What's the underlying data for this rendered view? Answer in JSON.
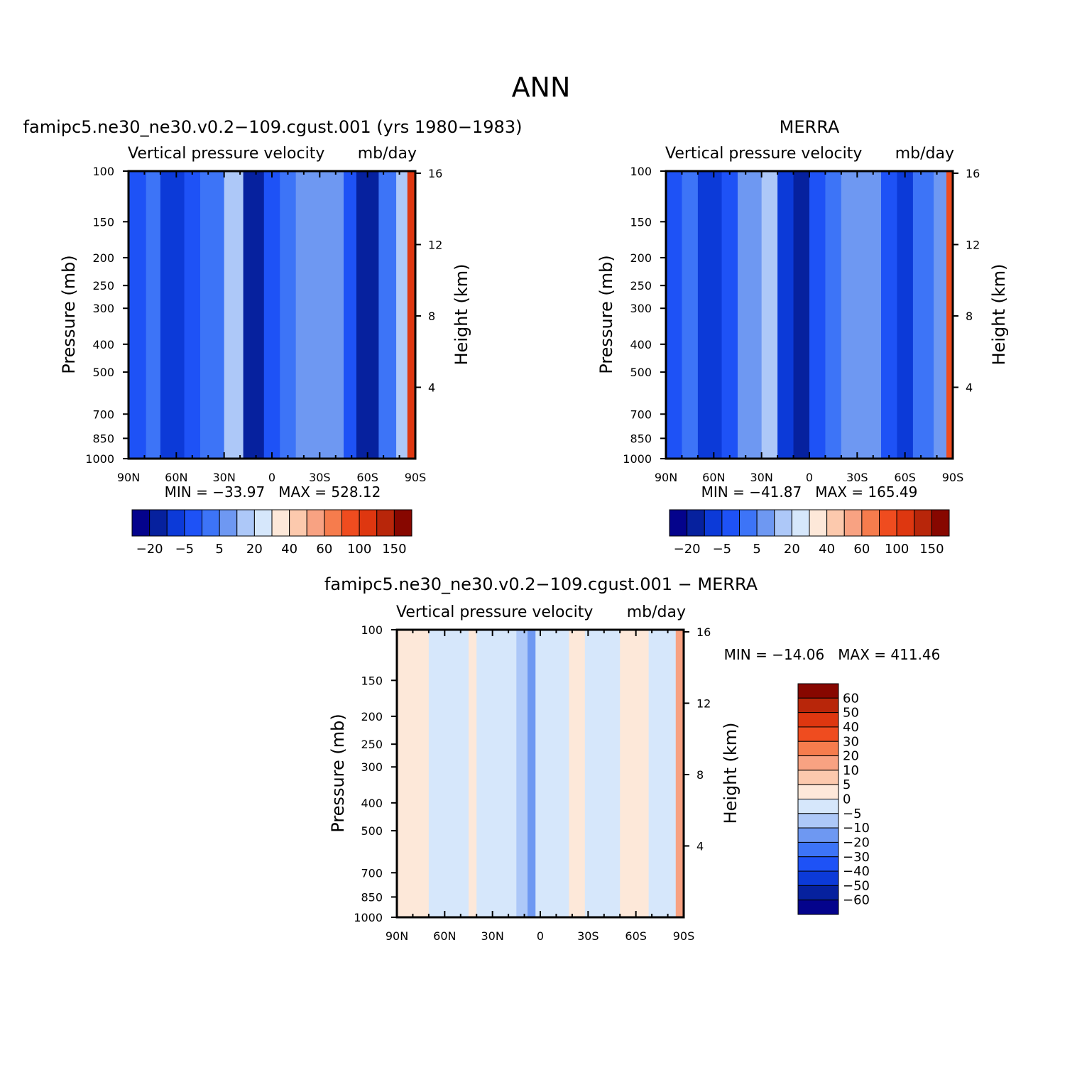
{
  "figure_title": "ANN",
  "panels": [
    {
      "title": "famipc5.ne30_ne30.v0.2−109.cgust.001 (yrs 1980−1983)",
      "subtitle_left": "Vertical pressure velocity",
      "subtitle_right": "mb/day",
      "ylabel": "Pressure (mb)",
      "ylabel_right": "Height (km)",
      "stats": "MIN = −33.97   MAX = 528.12"
    },
    {
      "title": "MERRA",
      "subtitle_left": "Vertical pressure velocity",
      "subtitle_right": "mb/day",
      "ylabel": "Pressure (mb)",
      "ylabel_right": "Height (km)",
      "stats": "MIN = −41.87   MAX = 165.49"
    },
    {
      "title": "famipc5.ne30_ne30.v0.2−109.cgust.001 − MERRA",
      "subtitle_left": "Vertical pressure velocity",
      "subtitle_right": "mb/day",
      "ylabel": "Pressure (mb)",
      "ylabel_right": "Height (km)",
      "stats": "MIN = −14.06   MAX = 411.46"
    }
  ],
  "chart_data": [
    {
      "type": "heatmap",
      "title": "famipc5.ne30_ne30.v0.2−109.cgust.001 (yrs 1980−1983)",
      "variable": "Vertical pressure velocity",
      "units": "mb/day",
      "x_ticks": [
        "90N",
        "60N",
        "30N",
        "0",
        "30S",
        "60S",
        "90S"
      ],
      "x_lat": [
        90,
        60,
        30,
        0,
        -30,
        -60,
        -90
      ],
      "y_ticks": [
        "100",
        "150",
        "200",
        "250",
        "300",
        "400",
        "500",
        "700",
        "850",
        "1000"
      ],
      "y_values": [
        100,
        150,
        200,
        250,
        300,
        400,
        500,
        700,
        850,
        1000
      ],
      "y_scale": "log",
      "ylim": [
        1000,
        100
      ],
      "y2_ticks": [
        "16",
        "12",
        "8",
        "4"
      ],
      "y2_values": [
        16,
        12,
        8,
        4
      ],
      "stats": {
        "min": -33.97,
        "max": 528.12
      },
      "colorbar": {
        "orientation": "horizontal",
        "labels": [
          "−20",
          "−5",
          "5",
          "20",
          "40",
          "60",
          "100",
          "150"
        ],
        "colors": [
          "#04038c",
          "#06219e",
          "#0c3ad8",
          "#1e52f6",
          "#3d74f7",
          "#6e98f2",
          "#adc8f8",
          "#d6e7fb",
          "#fde8d9",
          "#fcc9ad",
          "#f8a282",
          "#f67c4d",
          "#ef4c1f",
          "#de3710",
          "#b8260a",
          "#870700"
        ]
      },
      "bands": [
        {
          "lat": [
            90,
            79
          ],
          "level": 3
        },
        {
          "lat": [
            79,
            70
          ],
          "level": 4
        },
        {
          "lat": [
            70,
            55
          ],
          "level": 2
        },
        {
          "lat": [
            55,
            45
          ],
          "level": 3
        },
        {
          "lat": [
            45,
            30
          ],
          "level": 4
        },
        {
          "lat": [
            30,
            18
          ],
          "level": 6
        },
        {
          "lat": [
            18,
            5
          ],
          "level": 1
        },
        {
          "lat": [
            5,
            -5
          ],
          "level": 3
        },
        {
          "lat": [
            -5,
            -15
          ],
          "level": 4
        },
        {
          "lat": [
            -15,
            -45
          ],
          "level": 5
        },
        {
          "lat": [
            -45,
            -53
          ],
          "level": 3
        },
        {
          "lat": [
            -53,
            -67
          ],
          "level": 1
        },
        {
          "lat": [
            -67,
            -78
          ],
          "level": 4
        },
        {
          "lat": [
            -78,
            -85
          ],
          "level": 6
        },
        {
          "lat": [
            -85,
            -90
          ],
          "level": 13
        }
      ]
    },
    {
      "type": "heatmap",
      "title": "MERRA",
      "variable": "Vertical pressure velocity",
      "units": "mb/day",
      "x_ticks": [
        "90N",
        "60N",
        "30N",
        "0",
        "30S",
        "60S",
        "90S"
      ],
      "x_lat": [
        90,
        60,
        30,
        0,
        -30,
        -60,
        -90
      ],
      "y_ticks": [
        "100",
        "150",
        "200",
        "250",
        "300",
        "400",
        "500",
        "700",
        "850",
        "1000"
      ],
      "y_values": [
        100,
        150,
        200,
        250,
        300,
        400,
        500,
        700,
        850,
        1000
      ],
      "y_scale": "log",
      "ylim": [
        1000,
        100
      ],
      "y2_ticks": [
        "16",
        "12",
        "8",
        "4"
      ],
      "y2_values": [
        16,
        12,
        8,
        4
      ],
      "stats": {
        "min": -41.87,
        "max": 165.49
      },
      "colorbar": {
        "orientation": "horizontal",
        "labels": [
          "−20",
          "−5",
          "5",
          "20",
          "40",
          "60",
          "100",
          "150"
        ],
        "colors": [
          "#04038c",
          "#06219e",
          "#0c3ad8",
          "#1e52f6",
          "#3d74f7",
          "#6e98f2",
          "#adc8f8",
          "#d6e7fb",
          "#fde8d9",
          "#fcc9ad",
          "#f8a282",
          "#f67c4d",
          "#ef4c1f",
          "#de3710",
          "#b8260a",
          "#870700"
        ]
      },
      "bands": [
        {
          "lat": [
            90,
            80
          ],
          "level": 3
        },
        {
          "lat": [
            80,
            70
          ],
          "level": 4
        },
        {
          "lat": [
            70,
            55
          ],
          "level": 2
        },
        {
          "lat": [
            55,
            45
          ],
          "level": 3
        },
        {
          "lat": [
            45,
            30
          ],
          "level": 5
        },
        {
          "lat": [
            30,
            20
          ],
          "level": 6
        },
        {
          "lat": [
            20,
            10
          ],
          "level": 2
        },
        {
          "lat": [
            10,
            0
          ],
          "level": 1
        },
        {
          "lat": [
            0,
            -10
          ],
          "level": 3
        },
        {
          "lat": [
            -10,
            -20
          ],
          "level": 4
        },
        {
          "lat": [
            -20,
            -45
          ],
          "level": 5
        },
        {
          "lat": [
            -45,
            -55
          ],
          "level": 3
        },
        {
          "lat": [
            -55,
            -65
          ],
          "level": 2
        },
        {
          "lat": [
            -65,
            -78
          ],
          "level": 4
        },
        {
          "lat": [
            -78,
            -86
          ],
          "level": 5
        },
        {
          "lat": [
            -86,
            -90
          ],
          "level": 12
        }
      ]
    },
    {
      "type": "heatmap",
      "title": "famipc5.ne30_ne30.v0.2−109.cgust.001 − MERRA",
      "variable": "Vertical pressure velocity",
      "units": "mb/day",
      "x_ticks": [
        "90N",
        "60N",
        "30N",
        "0",
        "30S",
        "60S",
        "90S"
      ],
      "x_lat": [
        90,
        60,
        30,
        0,
        -30,
        -60,
        -90
      ],
      "y_ticks": [
        "100",
        "150",
        "200",
        "250",
        "300",
        "400",
        "500",
        "700",
        "850",
        "1000"
      ],
      "y_values": [
        100,
        150,
        200,
        250,
        300,
        400,
        500,
        700,
        850,
        1000
      ],
      "y_scale": "log",
      "ylim": [
        1000,
        100
      ],
      "y2_ticks": [
        "16",
        "12",
        "8",
        "4"
      ],
      "y2_values": [
        16,
        12,
        8,
        4
      ],
      "stats": {
        "min": -14.06,
        "max": 411.46
      },
      "colorbar": {
        "orientation": "vertical",
        "labels": [
          "60",
          "50",
          "40",
          "30",
          "20",
          "10",
          "5",
          "0",
          "−5",
          "−10",
          "−20",
          "−30",
          "−40",
          "−50",
          "−60"
        ],
        "colors": [
          "#870700",
          "#b8260a",
          "#de3710",
          "#ef4c1f",
          "#f67c4d",
          "#f8a282",
          "#fcc9ad",
          "#fde8d9",
          "#d6e7fb",
          "#adc8f8",
          "#6e98f2",
          "#3d74f7",
          "#1e52f6",
          "#0c3ad8",
          "#06219e",
          "#04038c"
        ]
      },
      "bands": [
        {
          "lat": [
            90,
            70
          ],
          "level": 8
        },
        {
          "lat": [
            70,
            45
          ],
          "level": 7
        },
        {
          "lat": [
            45,
            40
          ],
          "level": 8
        },
        {
          "lat": [
            40,
            15
          ],
          "level": 7
        },
        {
          "lat": [
            15,
            8
          ],
          "level": 6
        },
        {
          "lat": [
            8,
            3
          ],
          "level": 5
        },
        {
          "lat": [
            3,
            -18
          ],
          "level": 7
        },
        {
          "lat": [
            -18,
            -28
          ],
          "level": 8
        },
        {
          "lat": [
            -28,
            -50
          ],
          "level": 7
        },
        {
          "lat": [
            -50,
            -68
          ],
          "level": 8
        },
        {
          "lat": [
            -68,
            -85
          ],
          "level": 7
        },
        {
          "lat": [
            -85,
            -90
          ],
          "level": 10
        }
      ]
    }
  ]
}
